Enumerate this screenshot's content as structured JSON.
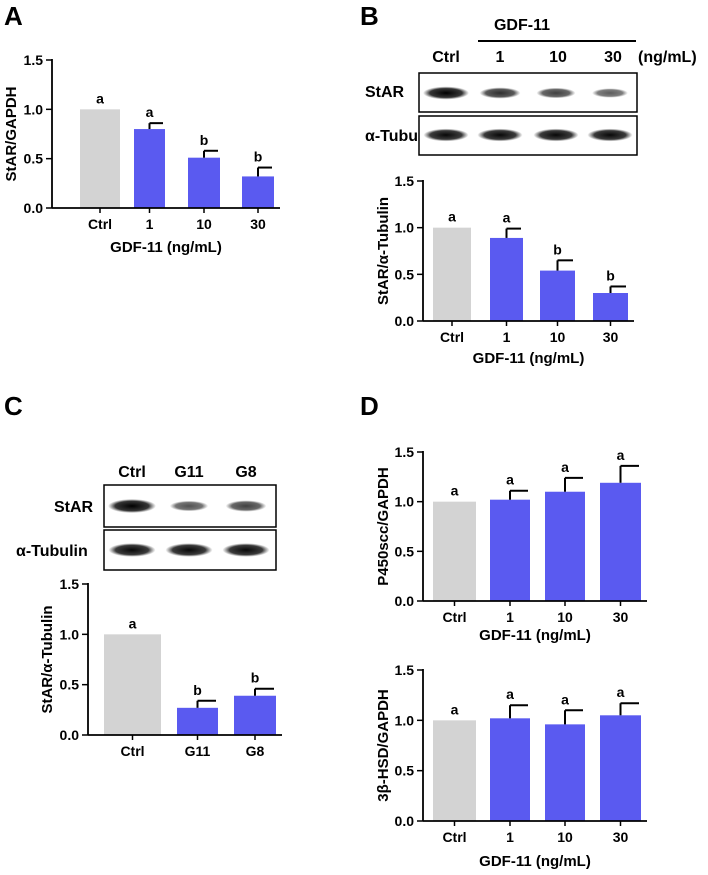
{
  "panels": [
    {
      "id": "A",
      "label": "A"
    },
    {
      "id": "B",
      "label": "B"
    },
    {
      "id": "C",
      "label": "C"
    },
    {
      "id": "D",
      "label": "D"
    }
  ],
  "blots": {
    "B": {
      "group_label": "GDF-11",
      "unit_label": "(ng/mL)",
      "lanes": [
        "Ctrl",
        "1",
        "10",
        "30"
      ],
      "rows": [
        {
          "label": "StAR",
          "intensities": [
            1.0,
            0.72,
            0.62,
            0.45
          ]
        },
        {
          "label": "α-Tubulin",
          "intensities": [
            0.95,
            0.95,
            0.95,
            0.95
          ]
        }
      ]
    },
    "C": {
      "lanes": [
        "Ctrl",
        "G11",
        "G8"
      ],
      "rows": [
        {
          "label": "StAR",
          "intensities": [
            1.0,
            0.5,
            0.62
          ]
        },
        {
          "label": "α-Tubulin",
          "intensities": [
            0.95,
            0.95,
            0.95
          ]
        }
      ]
    }
  },
  "chart_data": [
    {
      "id": "A",
      "type": "bar",
      "categories": [
        "Ctrl",
        "1",
        "10",
        "30"
      ],
      "values": [
        1.0,
        0.8,
        0.51,
        0.32
      ],
      "errors": [
        0,
        0.06,
        0.07,
        0.09
      ],
      "significance": [
        "a",
        "a",
        "b",
        "b"
      ],
      "colors": [
        "#d3d3d3",
        "#5a5af0",
        "#5a5af0",
        "#5a5af0"
      ],
      "xlabel": "GDF-11 (ng/mL)",
      "ylabel": "StAR/GAPDH",
      "ylim": [
        0,
        1.5
      ],
      "yticks": [
        "0.0",
        "0.5",
        "1.0",
        "1.5"
      ]
    },
    {
      "id": "B",
      "type": "bar",
      "categories": [
        "Ctrl",
        "1",
        "10",
        "30"
      ],
      "values": [
        1.0,
        0.89,
        0.54,
        0.3
      ],
      "errors": [
        0,
        0.1,
        0.11,
        0.07
      ],
      "significance": [
        "a",
        "a",
        "b",
        "b"
      ],
      "colors": [
        "#d3d3d3",
        "#5a5af0",
        "#5a5af0",
        "#5a5af0"
      ],
      "xlabel": "GDF-11 (ng/mL)",
      "ylabel": "StAR/α-Tubulin",
      "ylim": [
        0,
        1.5
      ],
      "yticks": [
        "0.0",
        "0.5",
        "1.0",
        "1.5"
      ]
    },
    {
      "id": "C",
      "type": "bar",
      "categories": [
        "Ctrl",
        "G11",
        "G8"
      ],
      "values": [
        1.0,
        0.27,
        0.39
      ],
      "errors": [
        0,
        0.07,
        0.07
      ],
      "significance": [
        "a",
        "b",
        "b"
      ],
      "colors": [
        "#d3d3d3",
        "#5a5af0",
        "#5a5af0"
      ],
      "xlabel": "",
      "ylabel": "StAR/α-Tubulin",
      "ylim": [
        0,
        1.5
      ],
      "yticks": [
        "0.0",
        "0.5",
        "1.0",
        "1.5"
      ]
    },
    {
      "id": "D1",
      "type": "bar",
      "categories": [
        "Ctrl",
        "1",
        "10",
        "30"
      ],
      "values": [
        1.0,
        1.02,
        1.1,
        1.19
      ],
      "errors": [
        0,
        0.09,
        0.14,
        0.17
      ],
      "significance": [
        "a",
        "a",
        "a",
        "a"
      ],
      "colors": [
        "#d3d3d3",
        "#5a5af0",
        "#5a5af0",
        "#5a5af0"
      ],
      "xlabel": "GDF-11 (ng/mL)",
      "ylabel": "P450scc/GAPDH",
      "ylim": [
        0,
        1.5
      ],
      "yticks": [
        "0.0",
        "0.5",
        "1.0",
        "1.5"
      ]
    },
    {
      "id": "D2",
      "type": "bar",
      "categories": [
        "Ctrl",
        "1",
        "10",
        "30"
      ],
      "values": [
        1.0,
        1.02,
        0.96,
        1.05
      ],
      "errors": [
        0,
        0.13,
        0.14,
        0.12
      ],
      "significance": [
        "a",
        "a",
        "a",
        "a"
      ],
      "colors": [
        "#d3d3d3",
        "#5a5af0",
        "#5a5af0",
        "#5a5af0"
      ],
      "xlabel": "GDF-11 (ng/mL)",
      "ylabel": "3β-HSD/GAPDH",
      "ylim": [
        0,
        1.5
      ],
      "yticks": [
        "0.0",
        "0.5",
        "1.0",
        "1.5"
      ]
    }
  ]
}
